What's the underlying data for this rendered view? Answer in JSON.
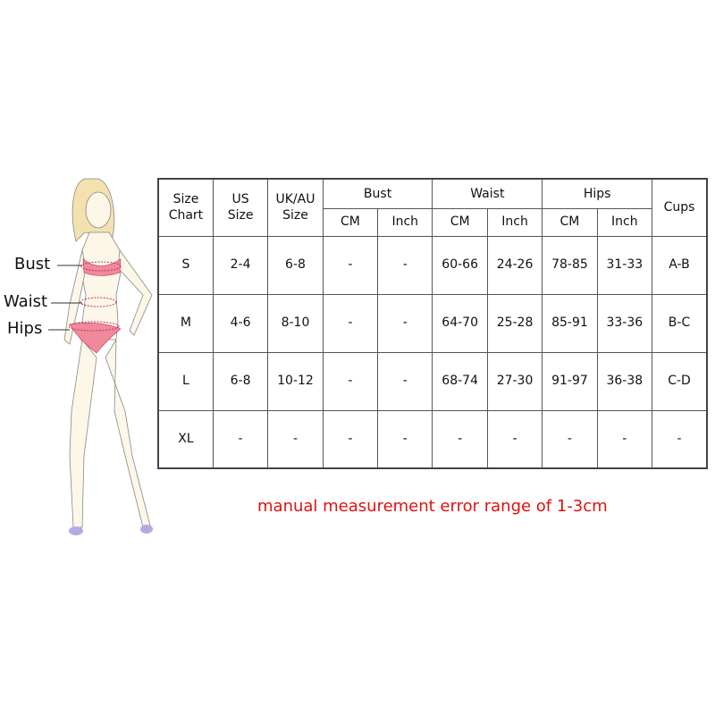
{
  "figure_labels": {
    "bust": "Bust",
    "waist": "Waist",
    "hips": "Hips"
  },
  "table": {
    "headers": {
      "size_chart": [
        "Size",
        "Chart"
      ],
      "us_size": [
        "US",
        "Size"
      ],
      "ukau_size": [
        "UK/AU",
        "Size"
      ],
      "bust": "Bust",
      "waist": "Waist",
      "hips": "Hips",
      "cups": "Cups",
      "sub": [
        "CM",
        "Inch",
        "CM",
        "Inch",
        "CM",
        "Inch"
      ]
    },
    "rows": [
      [
        "S",
        "2-4",
        "6-8",
        "-",
        "-",
        "60-66",
        "24-26",
        "78-85",
        "31-33",
        "A-B"
      ],
      [
        "M",
        "4-6",
        "8-10",
        "-",
        "-",
        "64-70",
        "25-28",
        "85-91",
        "33-36",
        "B-C"
      ],
      [
        "L",
        "6-8",
        "10-12",
        "-",
        "-",
        "68-74",
        "27-30",
        "91-97",
        "36-38",
        "C-D"
      ],
      [
        "XL",
        "-",
        "-",
        "-",
        "-",
        "-",
        "-",
        "-",
        "-",
        "-"
      ]
    ]
  },
  "note": "manual measurement error range of 1-3cm",
  "colors": {
    "note": "#e01010",
    "garment": "#f08a9a",
    "measure_line": "#c0306a"
  }
}
